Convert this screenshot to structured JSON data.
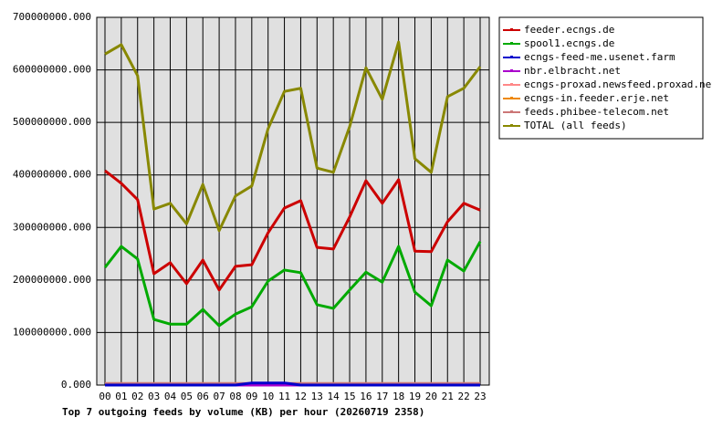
{
  "chart_data": {
    "type": "line",
    "title": "Top 7 outgoing feeds by volume (KB) per hour (20260719 2358)",
    "categories": [
      "00",
      "01",
      "02",
      "03",
      "04",
      "05",
      "06",
      "07",
      "08",
      "09",
      "10",
      "11",
      "12",
      "13",
      "14",
      "15",
      "16",
      "17",
      "18",
      "19",
      "20",
      "21",
      "22",
      "23"
    ],
    "ylim": [
      0,
      700000000
    ],
    "yticks": [
      {
        "value": 0,
        "label": "0.000"
      },
      {
        "value": 100000000,
        "label": "100000000.000"
      },
      {
        "value": 200000000,
        "label": "200000000.000"
      },
      {
        "value": 300000000,
        "label": "300000000.000"
      },
      {
        "value": 400000000,
        "label": "400000000.000"
      },
      {
        "value": 500000000,
        "label": "500000000.000"
      },
      {
        "value": 600000000,
        "label": "600000000.000"
      },
      {
        "value": 700000000,
        "label": "700000000.000"
      }
    ],
    "grid": true,
    "legend": "right",
    "series": [
      {
        "name": "feeder.ecngs.de",
        "color": "#cc0000",
        "values": [
          408000000,
          384000000,
          353000000,
          212000000,
          233000000,
          193000000,
          238000000,
          181000000,
          226000000,
          229000000,
          290000000,
          337000000,
          351000000,
          262000000,
          259000000,
          320000000,
          389000000,
          346000000,
          391000000,
          255000000,
          254000000,
          311000000,
          346000000,
          333000000
        ]
      },
      {
        "name": "spool1.ecngs.de",
        "color": "#00aa00",
        "values": [
          224000000,
          264000000,
          240000000,
          125000000,
          116000000,
          116000000,
          144000000,
          113000000,
          135000000,
          149000000,
          198000000,
          219000000,
          214000000,
          153000000,
          146000000,
          181000000,
          215000000,
          196000000,
          264000000,
          177000000,
          151000000,
          238000000,
          217000000,
          273000000
        ]
      },
      {
        "name": "ecngs-feed-me.usenet.farm",
        "color": "#0000cc",
        "values": [
          0,
          0,
          0,
          0,
          0,
          0,
          0,
          0,
          0,
          4000000,
          4000000,
          4000000,
          0,
          0,
          0,
          0,
          0,
          0,
          0,
          0,
          0,
          0,
          0,
          0
        ]
      },
      {
        "name": "nbr.elbracht.net",
        "color": "#aa00cc",
        "values": [
          0,
          0,
          0,
          0,
          0,
          0,
          0,
          0,
          0,
          0,
          0,
          0,
          0,
          0,
          0,
          0,
          0,
          0,
          0,
          0,
          0,
          0,
          0,
          0
        ]
      },
      {
        "name": "ecngs-proxad.newsfeed.proxad.net",
        "color": "#ff8888",
        "values": [
          0,
          0,
          0,
          0,
          0,
          0,
          0,
          0,
          0,
          0,
          0,
          0,
          0,
          0,
          0,
          0,
          0,
          0,
          0,
          0,
          0,
          0,
          0,
          0
        ]
      },
      {
        "name": "ecngs-in.feeder.erje.net",
        "color": "#ee8800",
        "values": [
          0,
          0,
          0,
          0,
          0,
          0,
          0,
          0,
          0,
          0,
          0,
          0,
          0,
          0,
          0,
          0,
          0,
          0,
          0,
          0,
          0,
          0,
          0,
          0
        ]
      },
      {
        "name": "feeds.phibee-telecom.net",
        "color": "#cc7777",
        "values": [
          3000000,
          3000000,
          3000000,
          3000000,
          3000000,
          3000000,
          3000000,
          3000000,
          3000000,
          3000000,
          3000000,
          3000000,
          3000000,
          3000000,
          3000000,
          3000000,
          3000000,
          3000000,
          3000000,
          3000000,
          3000000,
          3000000,
          3000000,
          3000000
        ]
      },
      {
        "name": "TOTAL (all feeds)",
        "color": "#888800",
        "values": [
          630000000,
          648000000,
          589000000,
          335000000,
          346000000,
          307000000,
          382000000,
          294000000,
          360000000,
          379000000,
          488000000,
          559000000,
          565000000,
          413000000,
          405000000,
          492000000,
          604000000,
          544000000,
          653000000,
          431000000,
          405000000,
          549000000,
          565000000,
          606000000
        ]
      }
    ]
  }
}
